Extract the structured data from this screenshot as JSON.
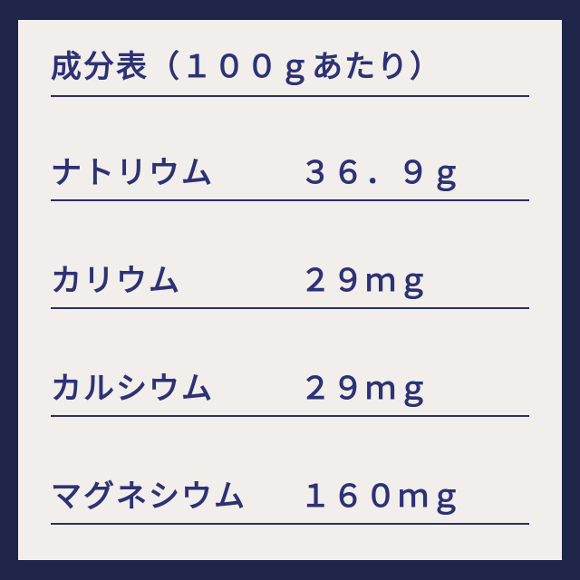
{
  "label": {
    "header": "成分表（１００ｇあたり）",
    "title_fontsize": 34,
    "text_color": "#2d3175",
    "underline_color": "#2a2e6b",
    "background_color": "#f1eeeb",
    "border_color": "#20254a",
    "rows": [
      {
        "name": "ナトリウム",
        "value": "３６．９ｇ"
      },
      {
        "name": "カリウム",
        "value": "２９ｍｇ"
      },
      {
        "name": "カルシウム",
        "value": "２９ｍｇ"
      },
      {
        "name": "マグネシウム",
        "value": "１６０ｍｇ"
      }
    ]
  }
}
